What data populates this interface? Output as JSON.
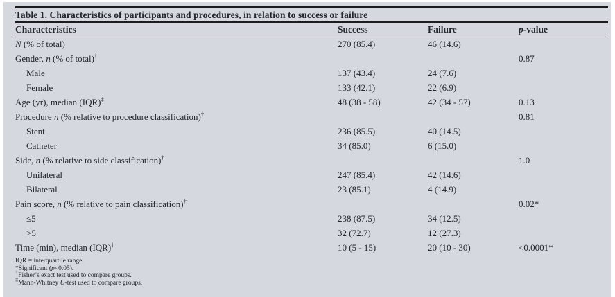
{
  "table": {
    "title": "Table 1. Characteristics of participants and procedures, in relation to success or failure",
    "columns": [
      [
        {
          "t": "Characteristics"
        }
      ],
      [
        {
          "t": "Success"
        }
      ],
      [
        {
          "t": "Failure"
        }
      ],
      [
        {
          "t": "p",
          "i": true
        },
        {
          "t": "-value"
        }
      ]
    ],
    "rows": [
      {
        "label": [
          {
            "t": "N",
            "i": true
          },
          {
            "t": " (% of total)"
          }
        ],
        "indent": false,
        "success": "270 (85.4)",
        "failure": "46 (14.6)",
        "p": ""
      },
      {
        "label": [
          {
            "t": "Gender, "
          },
          {
            "t": "n",
            "i": true
          },
          {
            "t": " (% of total)"
          },
          {
            "t": "†",
            "sup": true
          }
        ],
        "indent": false,
        "success": "",
        "failure": "",
        "p": "0.87"
      },
      {
        "label": [
          {
            "t": "Male"
          }
        ],
        "indent": true,
        "success": "137 (43.4)",
        "failure": "24 (7.6)",
        "p": ""
      },
      {
        "label": [
          {
            "t": "Female"
          }
        ],
        "indent": true,
        "success": "133 (42.1)",
        "failure": "22 (6.9)",
        "p": ""
      },
      {
        "label": [
          {
            "t": "Age (yr), median (IQR)"
          },
          {
            "t": "‡",
            "sup": true
          }
        ],
        "indent": false,
        "success": "48 (38 - 58)",
        "failure": "42 (34 - 57)",
        "p": "0.13"
      },
      {
        "label": [
          {
            "t": "Procedure "
          },
          {
            "t": "n",
            "i": true
          },
          {
            "t": " (% relative to procedure classification)"
          },
          {
            "t": "†",
            "sup": true
          }
        ],
        "indent": false,
        "success": "",
        "failure": "",
        "p": "0.81"
      },
      {
        "label": [
          {
            "t": "Stent"
          }
        ],
        "indent": true,
        "success": "236 (85.5)",
        "failure": "40 (14.5)",
        "p": ""
      },
      {
        "label": [
          {
            "t": "Catheter"
          }
        ],
        "indent": true,
        "success": "34 (85.0)",
        "failure": "6 (15.0)",
        "p": ""
      },
      {
        "label": [
          {
            "t": "Side, "
          },
          {
            "t": "n",
            "i": true
          },
          {
            "t": " (% relative to side classification)"
          },
          {
            "t": "†",
            "sup": true
          }
        ],
        "indent": false,
        "success": "",
        "failure": "",
        "p": "1.0"
      },
      {
        "label": [
          {
            "t": "Unilateral"
          }
        ],
        "indent": true,
        "success": "247 (85.4)",
        "failure": "42 (14.6)",
        "p": ""
      },
      {
        "label": [
          {
            "t": "Bilateral"
          }
        ],
        "indent": true,
        "success": "23 (85.1)",
        "failure": "4 (14.9)",
        "p": ""
      },
      {
        "label": [
          {
            "t": "Pain score, "
          },
          {
            "t": "n",
            "i": true
          },
          {
            "t": " (% relative to pain classification)"
          },
          {
            "t": "†",
            "sup": true
          }
        ],
        "indent": false,
        "success": "",
        "failure": "",
        "p": "0.02*"
      },
      {
        "label": [
          {
            "t": "≤5"
          }
        ],
        "indent": true,
        "success": "238 (87.5)",
        "failure": "34 (12.5)",
        "p": ""
      },
      {
        "label": [
          {
            "t": ">5"
          }
        ],
        "indent": true,
        "success": "32 (72.7)",
        "failure": "12 (27.3)",
        "p": ""
      },
      {
        "label": [
          {
            "t": "Time (min), median (IQR)"
          },
          {
            "t": "‡",
            "sup": true
          }
        ],
        "indent": false,
        "success": "10 (5 - 15)",
        "failure": "20 (10 - 30)",
        "p": "<0.0001*"
      }
    ],
    "footnotes": [
      [
        {
          "t": "IQR = interquartile range."
        }
      ],
      [
        {
          "t": "*Significant ("
        },
        {
          "t": "p",
          "i": true
        },
        {
          "t": "<0.05)."
        }
      ],
      [
        {
          "t": "†",
          "sup": true
        },
        {
          "t": "Fisher’s exact test used to compare groups."
        }
      ],
      [
        {
          "t": "‡",
          "sup": true
        },
        {
          "t": "Mann-Whitney "
        },
        {
          "t": "U",
          "i": true
        },
        {
          "t": "-test used to compare groups."
        }
      ]
    ],
    "colors": {
      "panel_bg": "#d5d9df",
      "text": "#24272e",
      "rule": "#1c1c1f"
    }
  }
}
